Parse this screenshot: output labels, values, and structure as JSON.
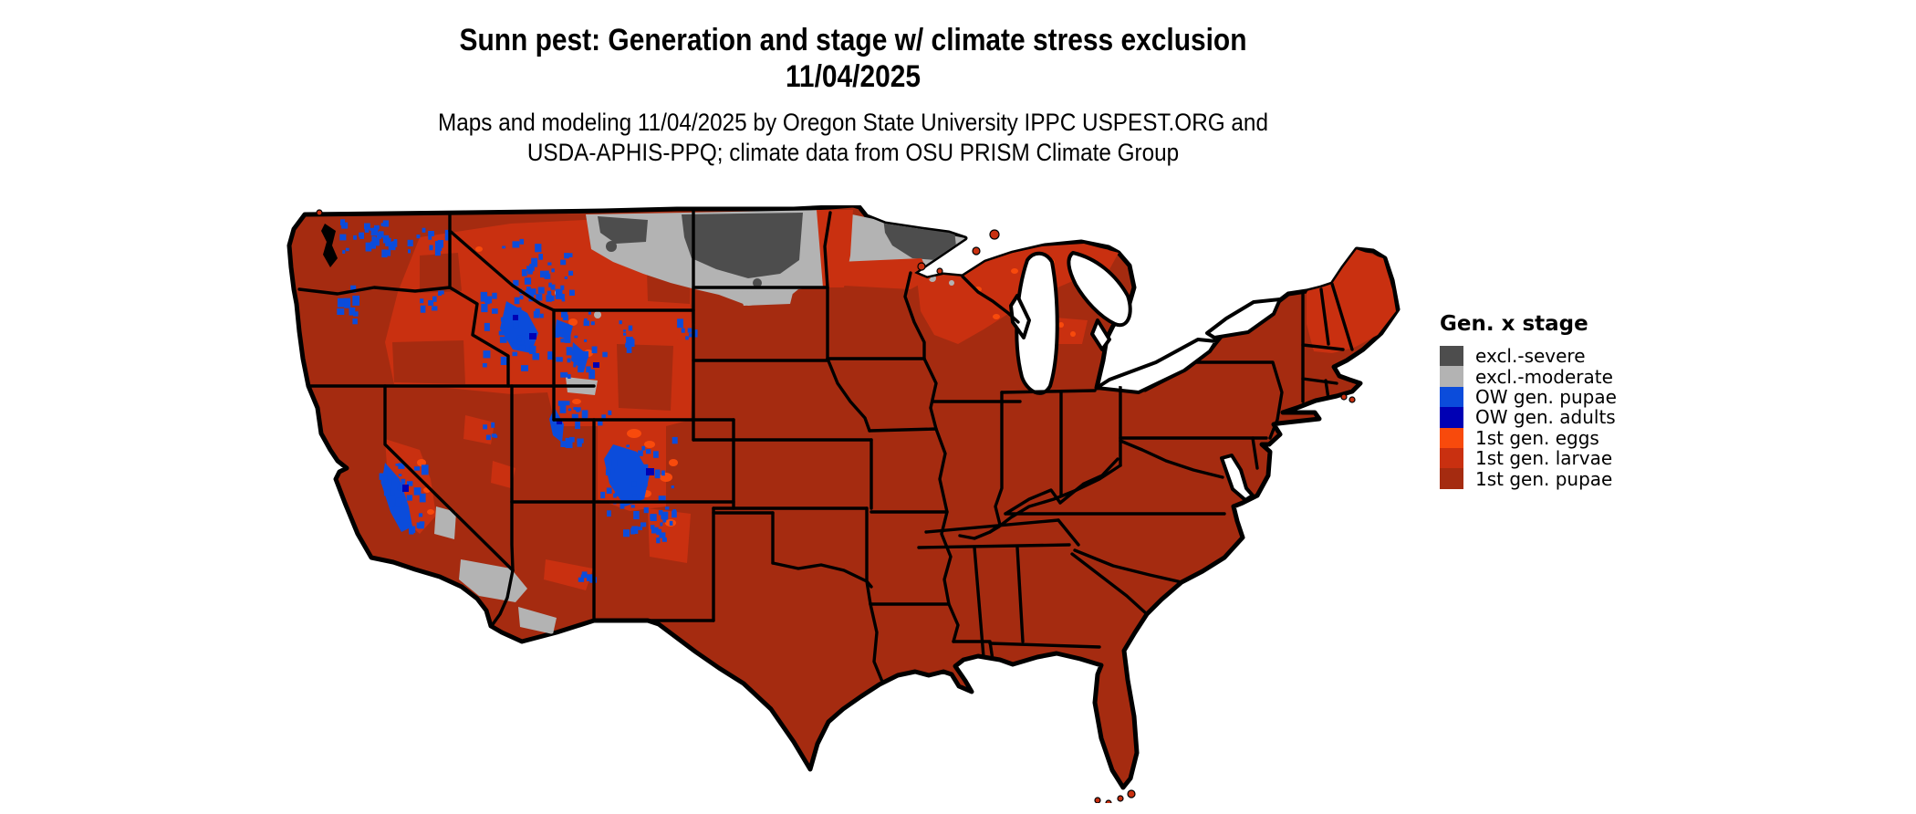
{
  "title": {
    "line1": "Sunn pest: Generation and stage w/ climate stress exclusion",
    "line2": "11/04/2025"
  },
  "subtitle": {
    "line1": "Maps and modeling 11/04/2025 by Oregon State University IPPC USPEST.ORG and",
    "line2": "USDA-APHIS-PPQ; climate data from OSU PRISM Climate Group"
  },
  "legend": {
    "title": "Gen. x stage",
    "items": [
      {
        "label": "excl.-severe",
        "color": "#4d4d4d"
      },
      {
        "label": "excl.-moderate",
        "color": "#b3b3b3"
      },
      {
        "label": "OW gen. pupae",
        "color": "#0b4cdb"
      },
      {
        "label": "OW gen. adults",
        "color": "#0000b4"
      },
      {
        "label": "1st gen. eggs",
        "color": "#f84a0c"
      },
      {
        "label": "1st gen. larvae",
        "color": "#c93010"
      },
      {
        "label": "1st gen. pupae",
        "color": "#a52b10"
      }
    ]
  },
  "map": {
    "region": "Continental United States",
    "palette": {
      "exclsev": "#4d4d4d",
      "exclmod": "#b3b3b3",
      "owpupae": "#0b4cdb",
      "owadults": "#0000b4",
      "eggs": "#f84a0c",
      "larvae": "#c93010",
      "pupae": "#a52b10",
      "border": "#000000",
      "background": "#ffffff"
    }
  }
}
